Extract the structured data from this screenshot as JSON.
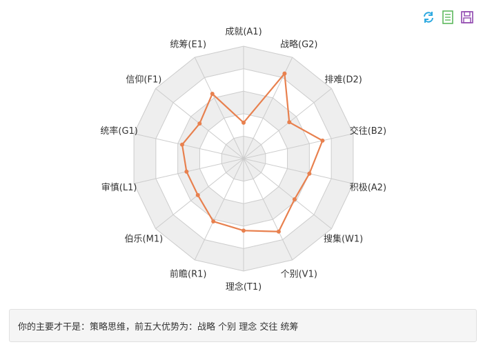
{
  "toolbar": {
    "icons": [
      "refresh-icon",
      "data-view-icon",
      "save-image-icon"
    ]
  },
  "chart_data": {
    "type": "radar",
    "indicators": [
      "成就(A1)",
      "战略(G2)",
      "排难(D2)",
      "交往(B2)",
      "积极(A2)",
      "搜集(W1)",
      "个别(V1)",
      "理念(T1)",
      "前瞻(R1)",
      "伯乐(M1)",
      "审慎(L1)",
      "统率(G1)",
      "信仰(F1)",
      "统筹(E1)"
    ],
    "max": 5,
    "series": [
      {
        "values": [
          1.6,
          4.2,
          2.6,
          3.6,
          3.0,
          2.9,
          3.6,
          3.2,
          3.1,
          2.6,
          2.6,
          2.8,
          2.5,
          3.2
        ]
      }
    ],
    "colors": {
      "line": "#e8804e",
      "band_light": "#ffffff",
      "band_dark": "#eeeeee",
      "grid": "#cccccc"
    }
  },
  "summary": {
    "text": "你的主要才干是：策略思维，前五大优势为：战略 个别 理念 交往 统筹"
  }
}
